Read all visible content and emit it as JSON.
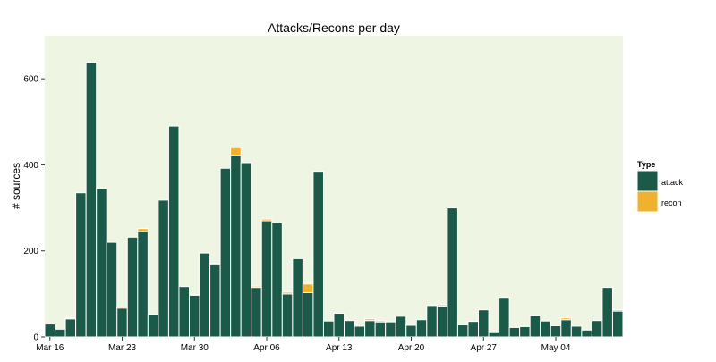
{
  "chart_data": {
    "type": "bar",
    "stacked": true,
    "title": "Attacks/Recons per day",
    "ylabel": "# sources",
    "xlabel": "",
    "ylim": [
      0,
      700
    ],
    "y_ticks": [
      0,
      200,
      400,
      600
    ],
    "grid": false,
    "legend_position": "right",
    "legend_title": "Type",
    "start_date": "Mar 16",
    "x_ticks": [
      {
        "label": "Mar 16",
        "day_index": 0
      },
      {
        "label": "Mar 23",
        "day_index": 7
      },
      {
        "label": "Mar 30",
        "day_index": 14
      },
      {
        "label": "Apr 06",
        "day_index": 21
      },
      {
        "label": "Apr 13",
        "day_index": 28
      },
      {
        "label": "Apr 20",
        "day_index": 35
      },
      {
        "label": "Apr 27",
        "day_index": 42
      },
      {
        "label": "May 04",
        "day_index": 49
      }
    ],
    "series": [
      {
        "name": "attack",
        "color": "#1b5a48",
        "values": [
          30,
          18,
          42,
          335,
          638,
          345,
          220,
          67,
          232,
          245,
          53,
          318,
          490,
          117,
          97,
          195,
          168,
          392,
          422,
          405,
          115,
          270,
          265,
          100,
          182,
          103,
          385,
          37,
          55,
          38,
          25,
          38,
          35,
          35,
          48,
          27,
          40,
          73,
          72,
          300,
          28,
          36,
          63,
          12,
          92,
          22,
          24,
          50,
          37,
          26,
          40,
          25,
          16,
          38,
          115,
          60
        ]
      },
      {
        "name": "recon",
        "color": "#f0b22e",
        "values": [
          0,
          0,
          2,
          0,
          0,
          0,
          0,
          3,
          0,
          7,
          0,
          0,
          0,
          0,
          2,
          0,
          3,
          0,
          18,
          0,
          3,
          4,
          0,
          4,
          0,
          20,
          0,
          0,
          0,
          0,
          0,
          4,
          3,
          0,
          0,
          0,
          0,
          0,
          3,
          0,
          0,
          0,
          0,
          0,
          0,
          0,
          0,
          0,
          0,
          0,
          4,
          0,
          0,
          0,
          0,
          3
        ]
      }
    ]
  },
  "colors": {
    "panel_background": "#eff5e3",
    "bar_outline": "#ffffff"
  }
}
